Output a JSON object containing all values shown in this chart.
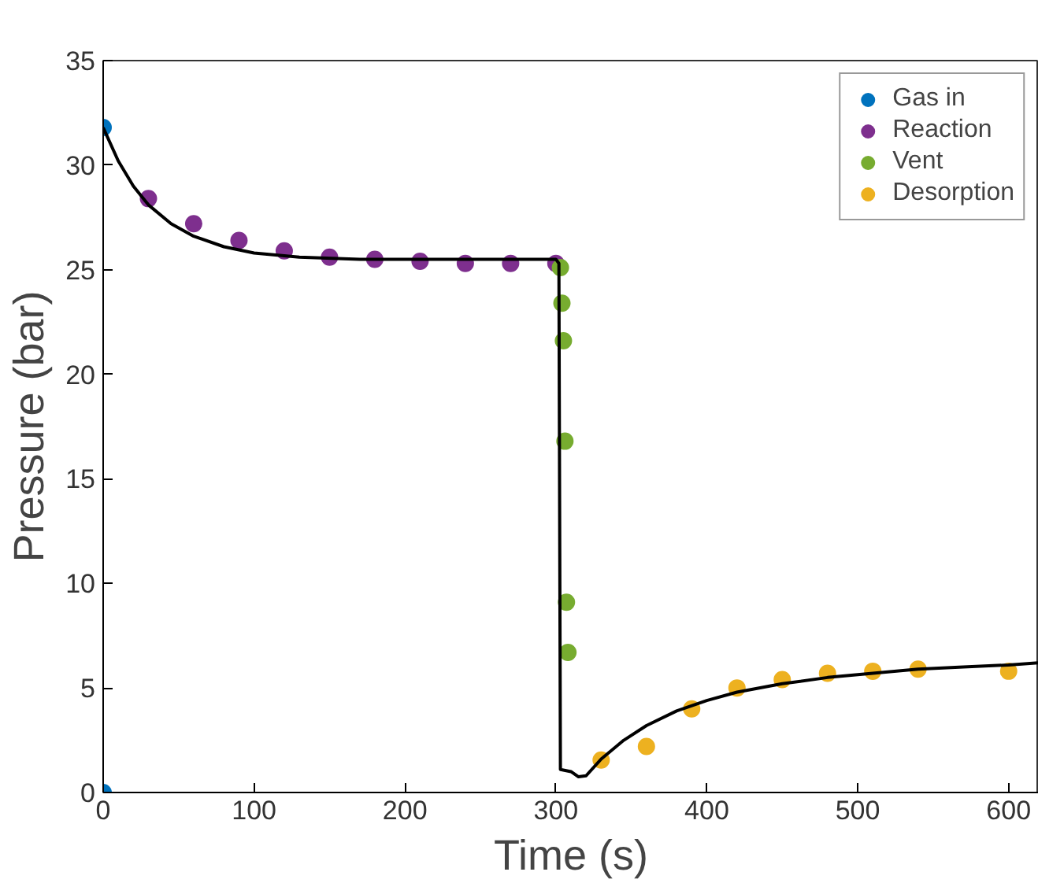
{
  "chart_data": {
    "type": "scatter",
    "xlabel": "Time (s)",
    "ylabel": "Pressure (bar)",
    "xlim": [
      0,
      620
    ],
    "ylim": [
      0,
      35
    ],
    "xticks": [
      0,
      100,
      200,
      300,
      400,
      500,
      600
    ],
    "yticks": [
      0,
      5,
      10,
      15,
      20,
      25,
      30,
      35
    ],
    "grid": false,
    "legend": "top right",
    "series": [
      {
        "name": "Gas in",
        "marker": "circle",
        "color": "#0072bd",
        "x": [
          0,
          0
        ],
        "values": [
          31.8,
          0
        ]
      },
      {
        "name": "Reaction",
        "marker": "circle",
        "color": "#7e2f8e",
        "x": [
          30,
          60,
          90,
          120,
          150,
          180,
          210,
          240,
          270,
          300
        ],
        "values": [
          28.4,
          27.2,
          26.4,
          25.9,
          25.6,
          25.5,
          25.4,
          25.3,
          25.3,
          25.3
        ]
      },
      {
        "name": "Vent",
        "marker": "circle",
        "color": "#77ac30",
        "x": [
          303,
          304,
          305,
          306,
          307,
          308
        ],
        "values": [
          25.1,
          23.4,
          21.6,
          16.8,
          9.1,
          6.7
        ]
      },
      {
        "name": "Desorption",
        "marker": "circle",
        "color": "#edb120",
        "x": [
          330,
          360,
          390,
          420,
          450,
          480,
          510,
          540,
          600
        ],
        "values": [
          1.55,
          2.2,
          4.0,
          5.0,
          5.4,
          5.7,
          5.8,
          5.9,
          5.8
        ]
      },
      {
        "type": "line",
        "marker": "none",
        "color": "#000000",
        "line_style": "solid",
        "x": [
          0,
          10,
          20,
          30,
          45,
          60,
          80,
          100,
          130,
          170,
          300,
          302,
          303,
          310,
          315,
          320,
          330,
          345,
          360,
          380,
          400,
          420,
          450,
          480,
          510,
          540,
          570,
          600,
          620
        ],
        "values": [
          31.8,
          30.2,
          29.0,
          28.1,
          27.2,
          26.6,
          26.1,
          25.8,
          25.6,
          25.5,
          25.5,
          25.3,
          1.1,
          1.0,
          0.75,
          0.8,
          1.6,
          2.5,
          3.2,
          3.9,
          4.4,
          4.8,
          5.2,
          5.5,
          5.7,
          5.9,
          6.0,
          6.1,
          6.2
        ]
      }
    ]
  }
}
